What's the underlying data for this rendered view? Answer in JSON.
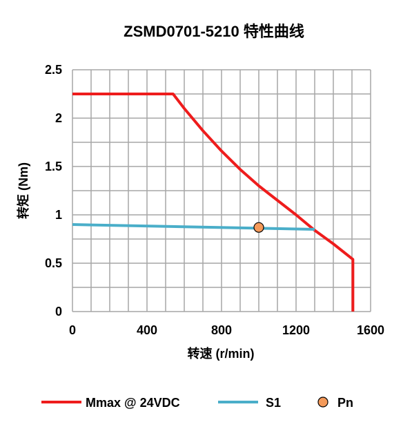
{
  "chart_data": {
    "type": "line",
    "title": "ZSMD0701-5210 特性曲线",
    "xlabel": "转速 (r/min)",
    "ylabel": "转矩 (Nm)",
    "xlim": [
      0,
      1600
    ],
    "ylim": [
      0,
      2.5
    ],
    "x_ticks": [
      0,
      400,
      800,
      1200,
      1600
    ],
    "x_tick_labels": [
      "0",
      "400",
      "800",
      "1200",
      "1600"
    ],
    "y_ticks": [
      0,
      0.5,
      1,
      1.5,
      2,
      2.5
    ],
    "y_tick_labels": [
      "0",
      "0.5",
      "1",
      "1.5",
      "2",
      "2.5"
    ],
    "x_grid_step": 100,
    "y_grid_step": 0.25,
    "grid": true,
    "legend_position": "bottom",
    "series": [
      {
        "name": "Mmax @ 24VDC",
        "kind": "line",
        "color": "#ee1c1c",
        "x": [
          0,
          540,
          600,
          700,
          800,
          900,
          1000,
          1100,
          1200,
          1300,
          1400,
          1505,
          1505
        ],
        "y": [
          2.25,
          2.25,
          2.1,
          1.87,
          1.66,
          1.47,
          1.3,
          1.15,
          1.0,
          0.84,
          0.7,
          0.54,
          0
        ]
      },
      {
        "name": "S1",
        "kind": "line",
        "color": "#4aaec9",
        "x": [
          0,
          1300
        ],
        "y": [
          0.9,
          0.85
        ]
      },
      {
        "name": "Pn",
        "kind": "point",
        "color": "#f49a5a",
        "x": [
          1000
        ],
        "y": [
          0.87
        ]
      }
    ]
  }
}
